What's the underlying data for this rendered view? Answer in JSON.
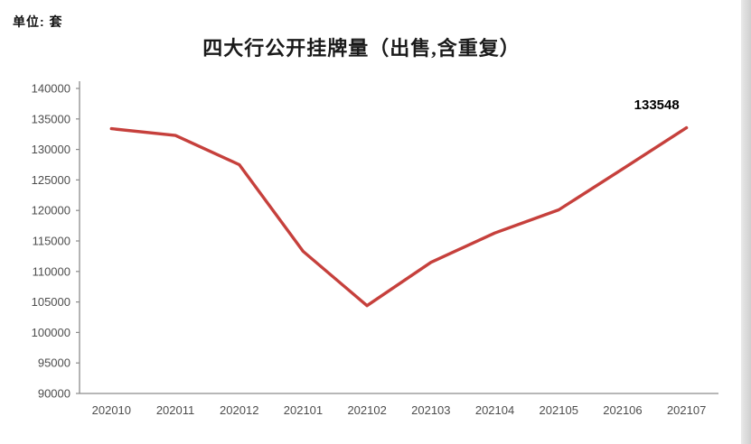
{
  "unit_label": "单位: 套",
  "chart_data": {
    "type": "line",
    "title": "四大行公开挂牌量（出售,含重复）",
    "xlabel": "",
    "ylabel": "",
    "categories": [
      "202010",
      "202011",
      "202012",
      "202101",
      "202102",
      "202103",
      "202104",
      "202105",
      "202106",
      "202107"
    ],
    "series": [
      {
        "name": "公开挂牌量",
        "color": "#c6403c",
        "values": [
          133400,
          132300,
          127500,
          113300,
          104400,
          111500,
          116300,
          120100,
          126800,
          133548
        ]
      }
    ],
    "ylim": [
      90000,
      140000
    ],
    "ytick_step": 5000,
    "grid": false,
    "legend_position": "none",
    "end_label": "133548"
  }
}
